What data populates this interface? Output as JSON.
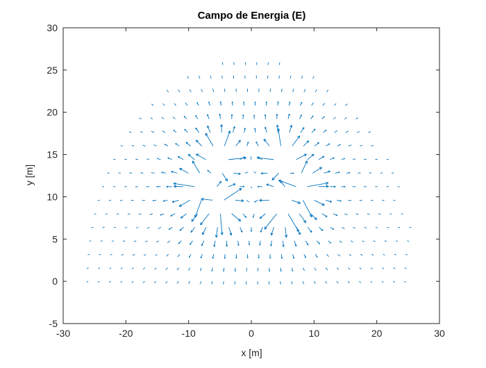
{
  "chart_data": {
    "type": "quiver",
    "title": "Campo de Energia (E)",
    "xlabel": "x [m]",
    "ylabel": "y [m]",
    "xlim": [
      -30,
      30
    ],
    "ylim": [
      -5,
      30
    ],
    "xticks": [
      -30,
      -20,
      -10,
      0,
      10,
      20,
      30
    ],
    "yticks": [
      -5,
      0,
      5,
      10,
      15,
      20,
      25,
      30
    ],
    "grid": false,
    "legend": "none",
    "series": [
      {
        "color": "#0072BD",
        "grid_spacing": {
          "dx": 1.8,
          "dy": 1.6
        },
        "region": "upper half-disk, radius ~26 centered at (0, 0), y from 0 to ~26",
        "sources": [
          {
            "x": -5,
            "y": 14.5
          },
          {
            "x": 5,
            "y": 14.5
          },
          {
            "x": -8,
            "y": 11
          },
          {
            "x": 8,
            "y": 11
          },
          {
            "x": -5,
            "y": 9
          },
          {
            "x": 5,
            "y": 9
          }
        ]
      }
    ]
  },
  "colors": {
    "axes": "#262626",
    "arrows": "#0072BD",
    "background": "#ffffff"
  }
}
